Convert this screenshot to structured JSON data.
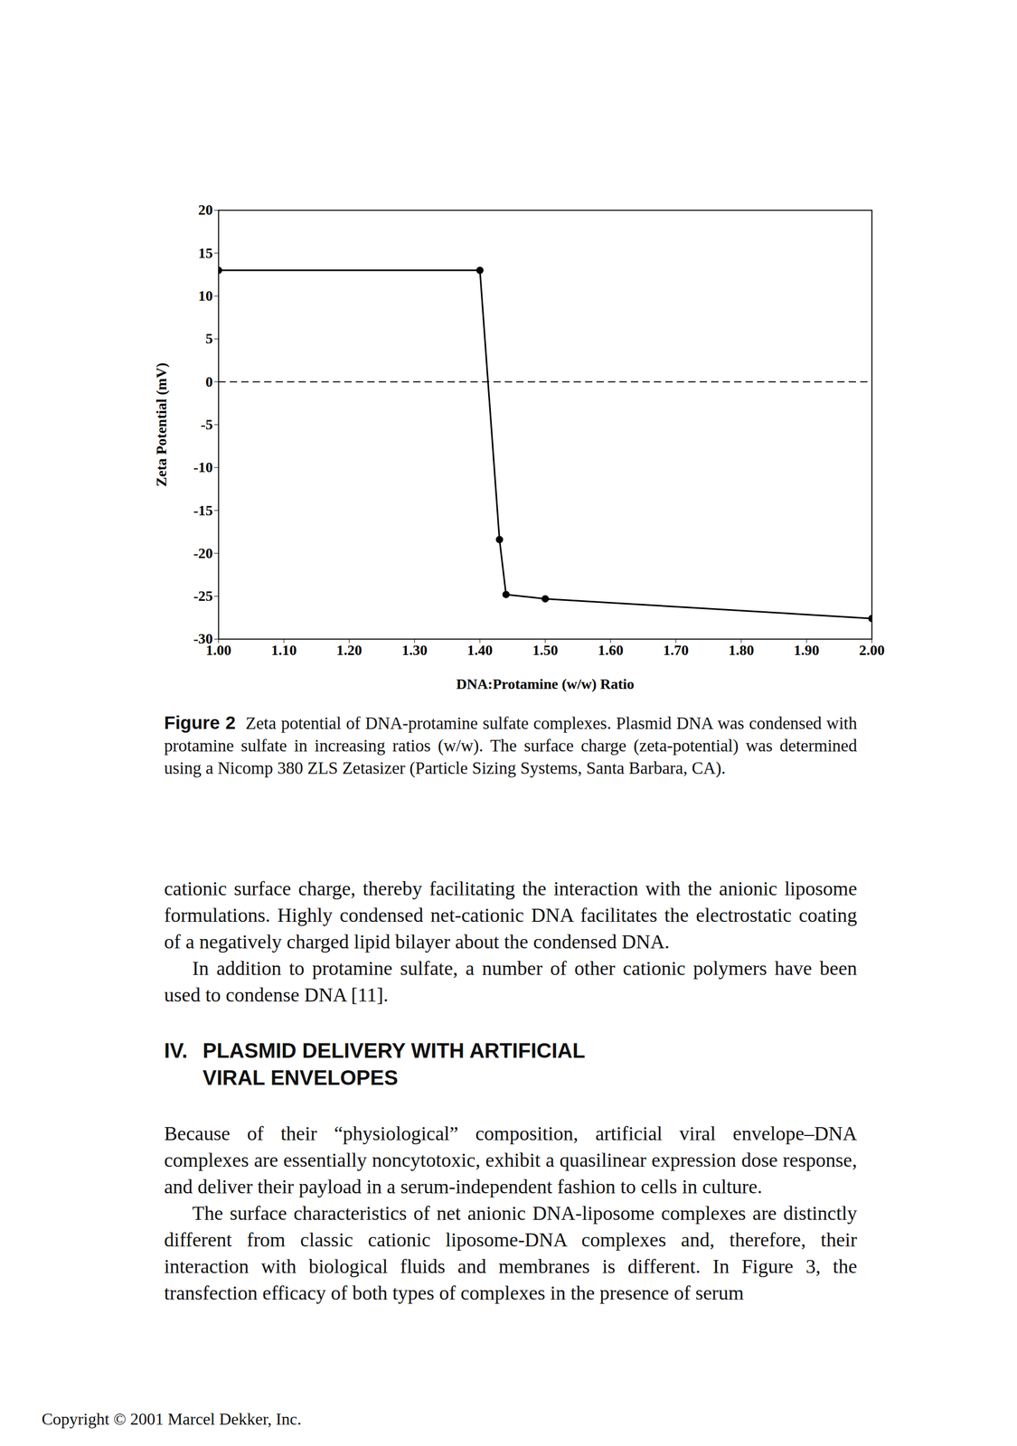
{
  "chart_data": {
    "type": "line",
    "x_label": "DNA:Protamine (w/w) Ratio",
    "y_label": "Zeta Potential (mV)",
    "x": [
      1.0,
      1.4,
      1.43,
      1.44,
      1.5,
      2.0
    ],
    "values": [
      13,
      13,
      -18.4,
      -24.8,
      -25.3,
      -27.6
    ],
    "color": "#000000",
    "marker": "circle",
    "line_style": "solid",
    "xlim": [
      1.0,
      2.0
    ],
    "xticks": [
      {
        "value": 1.0,
        "label": "1.00"
      },
      {
        "value": 1.1,
        "label": "1.10"
      },
      {
        "value": 1.2,
        "label": "1.20"
      },
      {
        "value": 1.3,
        "label": "1.30"
      },
      {
        "value": 1.4,
        "label": "1.40"
      },
      {
        "value": 1.5,
        "label": "1.50"
      },
      {
        "value": 1.6,
        "label": "1.60"
      },
      {
        "value": 1.7,
        "label": "1.70"
      },
      {
        "value": 1.8,
        "label": "1.80"
      },
      {
        "value": 1.9,
        "label": "1.90"
      },
      {
        "value": 2.0,
        "label": "2.00"
      }
    ],
    "ylim": [
      -30,
      20
    ],
    "yticks": [
      -30,
      -25,
      -20,
      -15,
      -10,
      -5,
      0,
      5,
      10,
      15,
      20
    ],
    "rules": [
      {
        "y": 0,
        "line_style": "dashed"
      }
    ],
    "grid": false
  },
  "document": {
    "caption": {
      "label": "Figure 2",
      "text": "Zeta potential of DNA-protamine sulfate complexes. Plasmid DNA was condensed with protamine sulfate in increasing ratios (w/w). The surface charge (zeta-potential) was determined using a Nicomp 380 ZLS Zetasizer (Particle Sizing Systems, Santa Barbara, CA)."
    },
    "paragraphs_before": [
      "cationic surface charge, thereby facilitating the interaction with the anionic liposome formulations. Highly condensed net-cationic DNA facilitates the electrostatic coating of a negatively charged lipid bilayer about the condensed DNA.",
      "In addition to protamine sulfate, a number of other cationic polymers have been used to condense DNA [11]."
    ],
    "section": {
      "number": "IV.",
      "heading_lines": [
        "PLASMID DELIVERY WITH ARTIFICIAL",
        "VIRAL ENVELOPES"
      ],
      "paragraphs": [
        "Because of their “physiological” composition, artificial viral envelope–DNA complexes are essentially noncytotoxic, exhibit a quasilinear expression dose response, and deliver their payload in a serum-independent fashion to cells in culture.",
        "The surface characteristics of net anionic DNA-liposome complexes are distinctly different from classic cationic liposome-DNA complexes and, therefore, their interaction with biological fluids and membranes is different. In Figure 3, the transfection efficacy of both types of complexes in the presence of serum"
      ]
    },
    "footer": "Copyright © 2001 Marcel Dekker, Inc."
  }
}
